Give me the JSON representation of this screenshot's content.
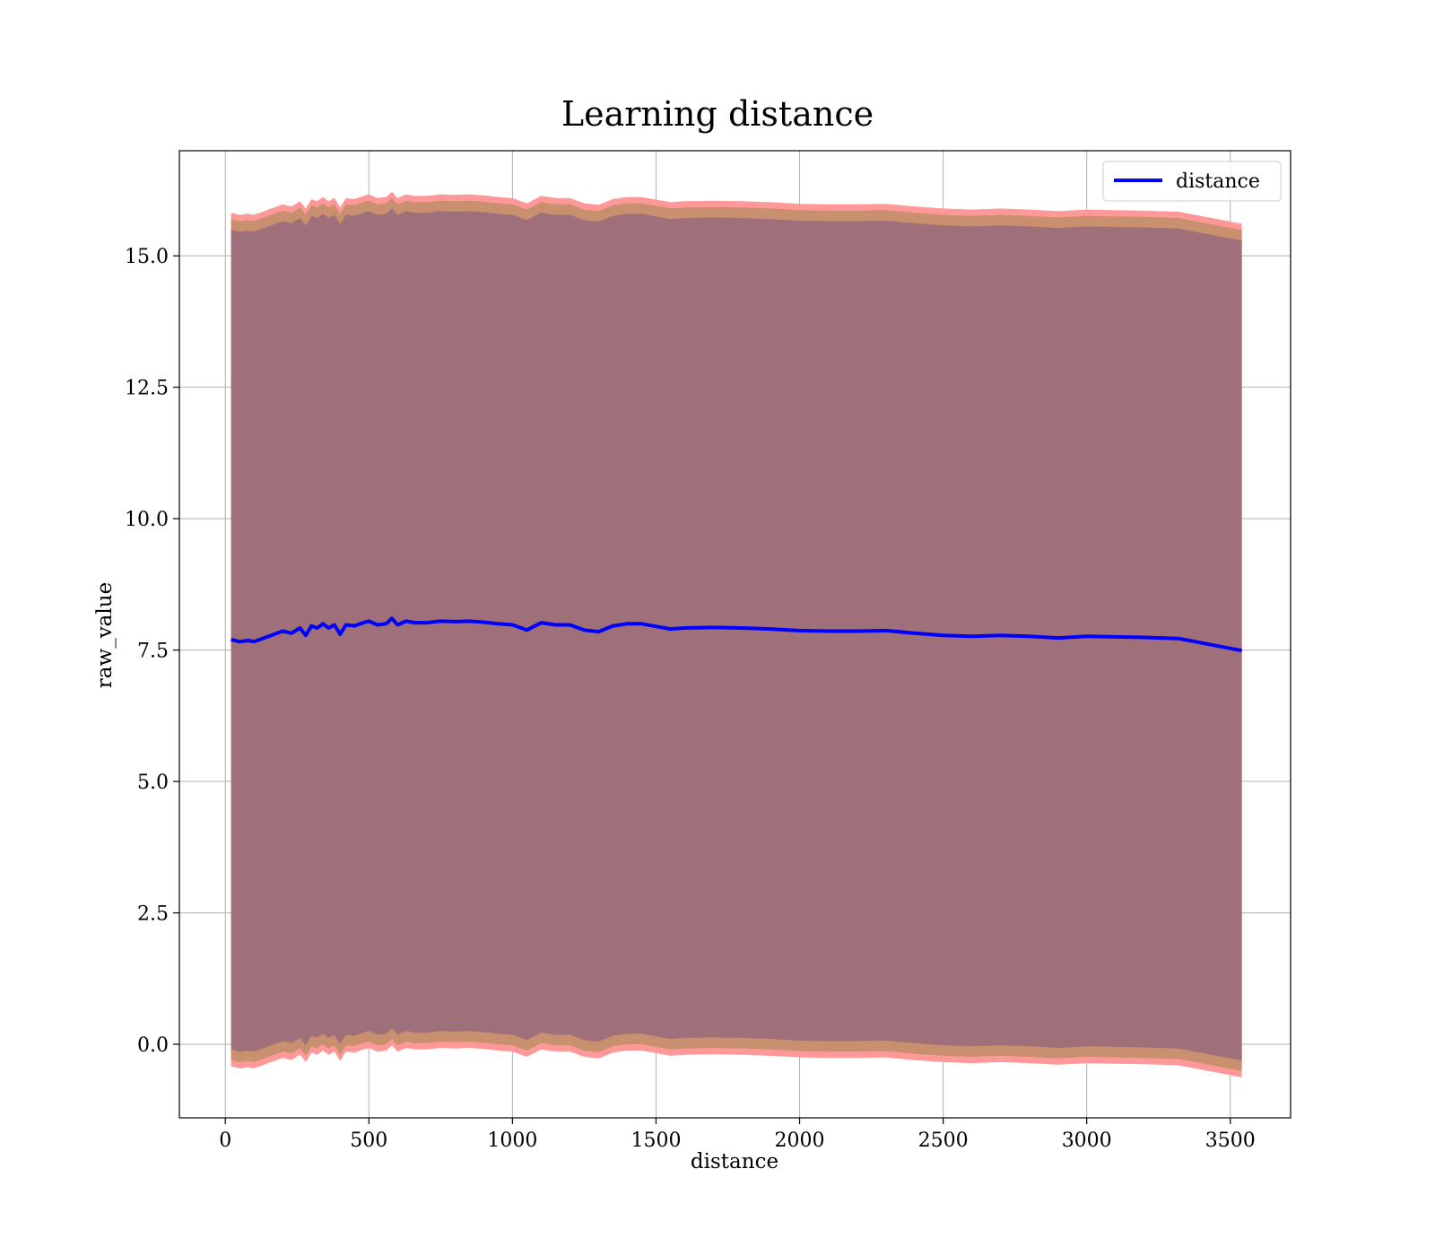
{
  "chart_data": {
    "type": "line",
    "title": "Learning distance",
    "xlabel": "distance",
    "ylabel": "raw_value",
    "xlim": [
      -160,
      3710
    ],
    "ylim": [
      -1.4,
      17.0
    ],
    "x_ticks": [
      0,
      500,
      1000,
      1500,
      2000,
      2500,
      3000,
      3500
    ],
    "x_tick_labels": [
      "0",
      "500",
      "1000",
      "1500",
      "2000",
      "2500",
      "3000",
      "3500"
    ],
    "y_ticks": [
      0.0,
      2.5,
      5.0,
      7.5,
      10.0,
      12.5,
      15.0
    ],
    "y_tick_labels": [
      "0.0",
      "2.5",
      "5.0",
      "7.5",
      "10.0",
      "12.5",
      "15.0"
    ],
    "grid": true,
    "legend_position": "top-right",
    "colors": {
      "line": "#0000ff",
      "band_outer": "#ff9999",
      "band_mid": "#c8906e",
      "band_inner": "#a0707a"
    },
    "series": [
      {
        "name": "distance",
        "x": [
          20,
          50,
          80,
          100,
          130,
          160,
          180,
          200,
          230,
          260,
          280,
          300,
          320,
          340,
          360,
          380,
          400,
          420,
          450,
          480,
          500,
          530,
          560,
          580,
          600,
          630,
          660,
          700,
          750,
          800,
          850,
          900,
          950,
          1000,
          1050,
          1100,
          1150,
          1200,
          1250,
          1300,
          1350,
          1400,
          1450,
          1500,
          1550,
          1600,
          1700,
          1800,
          1900,
          2000,
          2100,
          2200,
          2300,
          2400,
          2500,
          2600,
          2700,
          2800,
          2900,
          3000,
          3100,
          3200,
          3320,
          3540
        ],
        "values": [
          7.7,
          7.66,
          7.68,
          7.66,
          7.72,
          7.78,
          7.82,
          7.86,
          7.82,
          7.92,
          7.78,
          7.96,
          7.92,
          8.0,
          7.92,
          7.98,
          7.8,
          7.98,
          7.96,
          8.02,
          8.05,
          7.98,
          8.0,
          8.1,
          7.98,
          8.05,
          8.02,
          8.02,
          8.05,
          8.04,
          8.05,
          8.03,
          8.0,
          7.98,
          7.88,
          8.02,
          7.98,
          7.98,
          7.88,
          7.85,
          7.96,
          8.0,
          8.0,
          7.95,
          7.9,
          7.92,
          7.93,
          7.92,
          7.9,
          7.87,
          7.86,
          7.86,
          7.87,
          7.82,
          7.78,
          7.76,
          7.78,
          7.76,
          7.73,
          7.76,
          7.75,
          7.74,
          7.72,
          7.49
        ]
      }
    ],
    "band_half_widths": {
      "inner": 7.8,
      "mid": 8.0,
      "outer": 8.12
    }
  }
}
